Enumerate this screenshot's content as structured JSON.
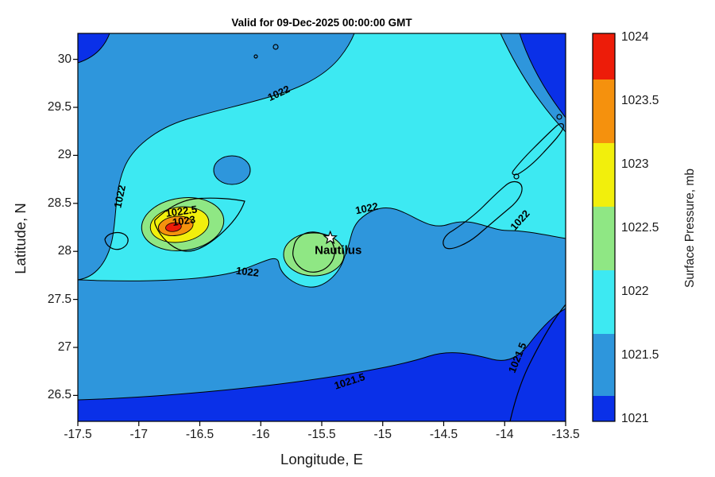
{
  "chart_data": {
    "type": "heatmap",
    "subtype": "filled_contour_weather_map",
    "title": "Valid for 09-Dec-2025 00:00:00 GMT",
    "xlabel": "Longitude, E",
    "ylabel": "Latitude, N",
    "colorbar_label": "Surface Pressure, mb",
    "xlim": [
      -17.5,
      -13.5
    ],
    "ylim": [
      26.23,
      30.27
    ],
    "x_ticks": [
      -17.5,
      -17,
      -16.5,
      -16,
      -15.5,
      -15,
      -14.5,
      -14,
      -13.5
    ],
    "y_ticks": [
      30,
      29.5,
      29,
      28.5,
      28,
      27.5,
      27,
      26.5
    ],
    "grid": false,
    "levels_mb": [
      1021,
      1021.5,
      1022,
      1022.5,
      1023,
      1023.5,
      1024
    ],
    "colorbar_tick_labels": [
      "1024",
      "1023.5",
      "1023",
      "1022.5",
      "1022",
      "1021.5",
      "1021"
    ],
    "palette_top_to_bottom": [
      "#ed1c09",
      "#f5910d",
      "#f2ef0c",
      "#8fe784",
      "#3de9f2",
      "#2e96dc",
      "#0a30e8"
    ],
    "palette_meaning": "red = highest pressure (~1024 mb), dark blue = lowest (~1021 mb)",
    "labeled_contours": [
      {
        "value_mb": 1022,
        "label": "1022",
        "lon": -15.85,
        "lat": 29.64,
        "rotation_deg": -25
      },
      {
        "value_mb": 1022,
        "label": "1022",
        "lon": -17.15,
        "lat": 28.57,
        "rotation_deg": -78
      },
      {
        "value_mb": 1022.5,
        "label": "1022.5",
        "lon": -16.65,
        "lat": 28.41,
        "rotation_deg": -8
      },
      {
        "value_mb": 1023,
        "label": "1023",
        "lon": -16.63,
        "lat": 28.31,
        "rotation_deg": -8
      },
      {
        "value_mb": 1022,
        "label": "1022",
        "lon": -15.13,
        "lat": 28.44,
        "rotation_deg": -12
      },
      {
        "value_mb": 1022,
        "label": "1022",
        "lon": -13.87,
        "lat": 28.32,
        "rotation_deg": -48
      },
      {
        "value_mb": 1022,
        "label": "1022",
        "lon": -16.11,
        "lat": 27.78,
        "rotation_deg": 6
      },
      {
        "value_mb": 1021.5,
        "label": "1021.5",
        "lon": -15.27,
        "lat": 26.64,
        "rotation_deg": -18
      },
      {
        "value_mb": 1021.5,
        "label": "1021.5",
        "lon": -13.89,
        "lat": 26.89,
        "rotation_deg": -68
      }
    ],
    "features": [
      {
        "name": "high-pressure-center",
        "lon": -16.7,
        "lat": 28.27,
        "peak_mb": "~1023.5-1024",
        "note": "closed high with 1022.5 and 1023 contours, yellow/orange/red core"
      },
      {
        "name": "secondary-cell",
        "lon": -15.6,
        "lat": 28.0,
        "peak_mb": "~1022.5-1023",
        "note": "small green 1022.5 cell over round island"
      },
      {
        "name": "low-pressure-band",
        "extent": "south of ~27.2 N",
        "value_mb": "<1021.5"
      }
    ],
    "station": {
      "label": "Nautilus",
      "marker": "star",
      "lon": -15.43,
      "lat": 28.14
    }
  }
}
